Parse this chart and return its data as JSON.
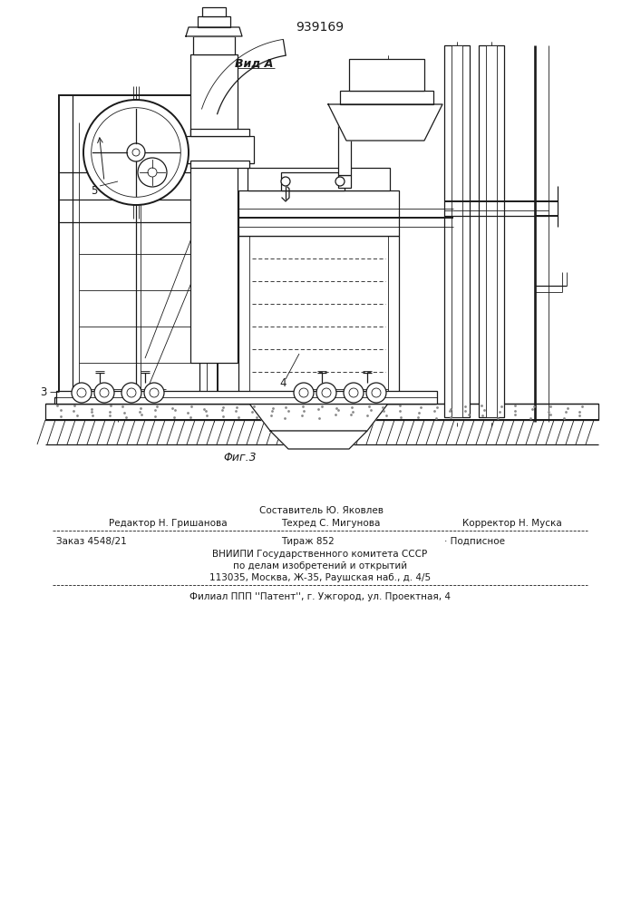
{
  "patent_number": "939169",
  "fig_label": "Φиг.3",
  "view_label": "Вид A",
  "label_3": "3",
  "label_4": "4",
  "label_5": "5",
  "bg_color": "#ffffff",
  "line_color": "#1a1a1a",
  "sestavitel": "Составитель Ю. Яковлев",
  "redaktor": "Редактор Н. Гришанова",
  "tehred": "Техред С. Мигунова",
  "korrektor": "Корректор Н. Муска",
  "order_line": "Заказ 4548/21",
  "tirazh": "Тираж 852",
  "podpisnoe": "· Подписное",
  "vnipi_line1": "ВНИИПИ Государственного комитета СССР",
  "vnipi_line2": "по делам изобретений и открытий",
  "vnipi_line3": "113035, Москва, Ж-35, Раушская наб., д. 4/5",
  "filial_line": "Филиал ППП ''Патент'', г. Ужгород, ул. Проектная, 4"
}
